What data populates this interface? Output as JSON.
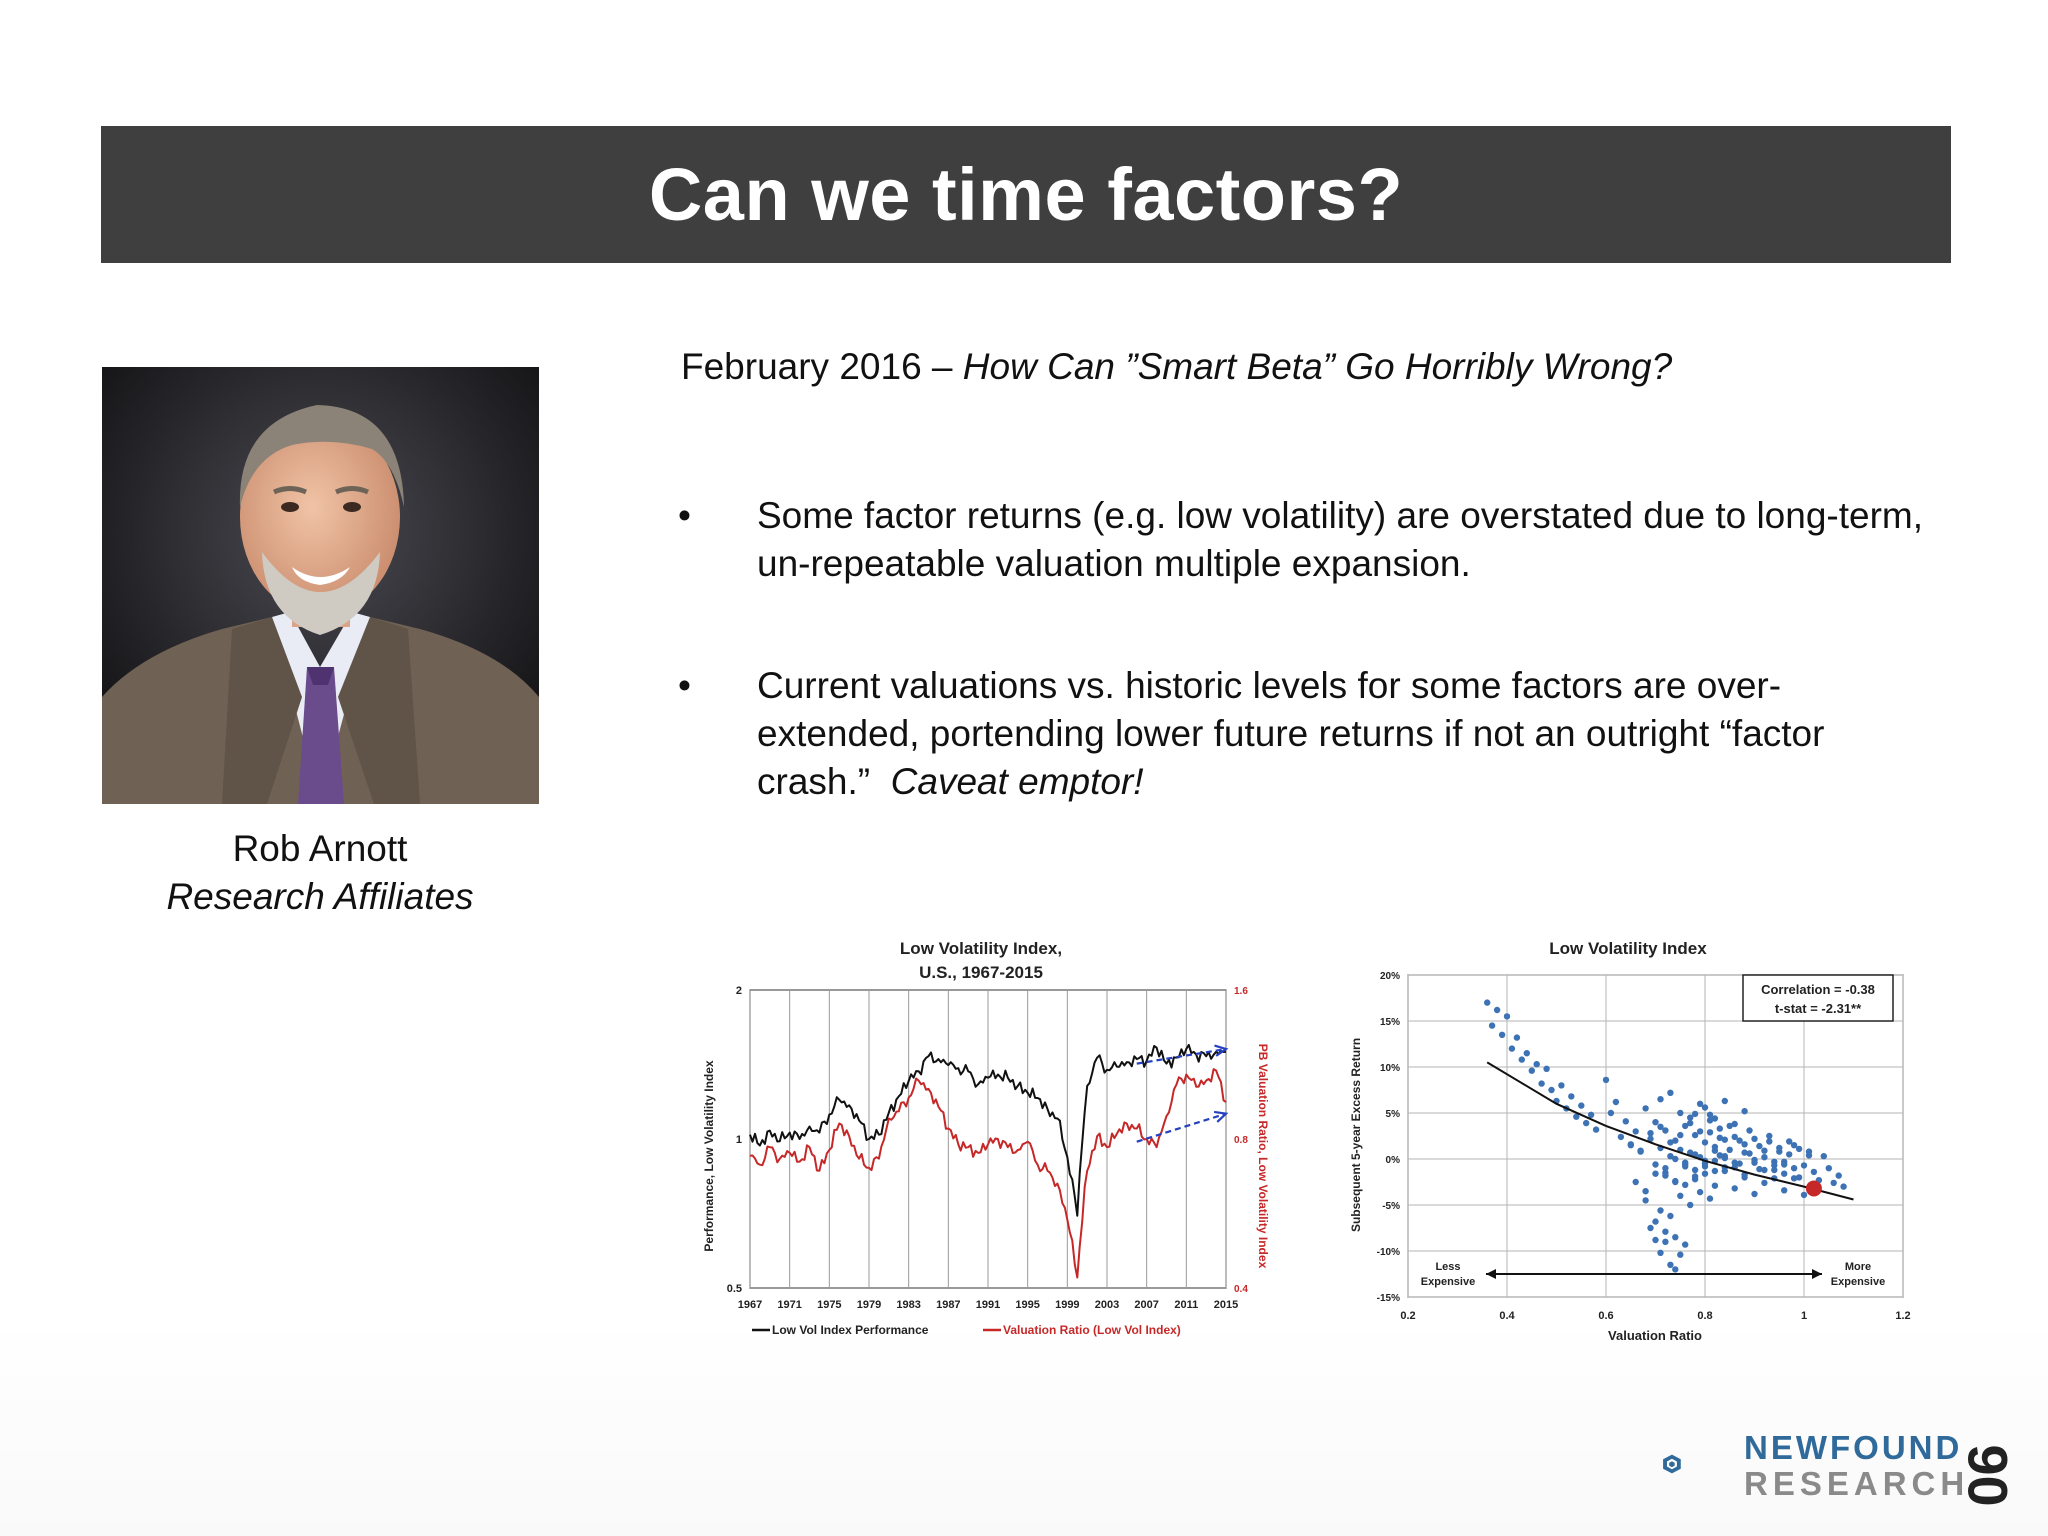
{
  "slide": {
    "title": "Can we time factors?",
    "subtitle_date": "February 2016 – ",
    "subtitle_title": "How Can ”Smart Beta” Go Horribly Wrong?",
    "bullets": [
      {
        "marker": "•",
        "text": "Some factor returns (e.g. low volatility) are overstated due to long-term, un-repeatable valuation multiple expansion."
      },
      {
        "marker": "•",
        "text": "Current valuations vs. historic levels for some factors are over-extended, portending lower future returns if not an outright “factor crash.”",
        "emphasis": "Caveat emptor!"
      }
    ],
    "person": {
      "name": "Rob Arnott",
      "organization": "Research Affiliates"
    },
    "page_number": "90"
  },
  "logo": {
    "word1": "NEWFOUND",
    "word2": "RESEARCH",
    "primary_color": "#2f6a9a",
    "secondary_color": "#8a8a8a"
  },
  "colors": {
    "title_bar": "#3f3f3f",
    "perf_line": "#111111",
    "valuation_line": "#c62828",
    "scatter_point": "#3d72b4",
    "trend_arrow": "#2540c0"
  },
  "chart_data": [
    {
      "type": "line",
      "title_line1": "Low Volatility Index,",
      "title_line2": "U.S., 1967-2015",
      "ylabel": "Performance, Low Volatility Index",
      "y2label": "PB Valuation Ratio, Low Volatility Index",
      "y_scale": "log",
      "ylim": [
        0.5,
        2
      ],
      "y_ticks": [
        "2",
        "1",
        "0.5"
      ],
      "y2lim": [
        0.4,
        1.6
      ],
      "y2_ticks": [
        "1.6",
        "0.8",
        "0.4"
      ],
      "x_ticks": [
        "1967",
        "1971",
        "1975",
        "1979",
        "1983",
        "1987",
        "1991",
        "1995",
        "1999",
        "2003",
        "2007",
        "2011",
        "2015"
      ],
      "grid": "vertical",
      "legend_position": "bottom",
      "series": [
        {
          "name": "Low Vol Index Performance",
          "axis": "left",
          "color": "#111111",
          "x": [
            1967,
            1968,
            1969,
            1970,
            1971,
            1972,
            1973,
            1974,
            1975,
            1976,
            1977,
            1978,
            1979,
            1980,
            1981,
            1982,
            1983,
            1984,
            1985,
            1986,
            1987,
            1988,
            1989,
            1990,
            1991,
            1992,
            1993,
            1994,
            1995,
            1996,
            1997,
            1998,
            1999,
            2000,
            2001,
            2002,
            2003,
            2004,
            2005,
            2006,
            2007,
            2008,
            2009,
            2010,
            2011,
            2012,
            2013,
            2014,
            2015
          ],
          "y": [
            1.02,
            0.97,
            1.04,
            0.99,
            1.03,
            1.0,
            1.06,
            1.03,
            1.12,
            1.2,
            1.17,
            1.09,
            1.0,
            1.02,
            1.13,
            1.22,
            1.31,
            1.37,
            1.47,
            1.45,
            1.41,
            1.39,
            1.37,
            1.29,
            1.33,
            1.35,
            1.33,
            1.28,
            1.24,
            1.21,
            1.15,
            1.1,
            0.92,
            0.7,
            1.28,
            1.46,
            1.38,
            1.4,
            1.43,
            1.45,
            1.44,
            1.53,
            1.42,
            1.46,
            1.52,
            1.48,
            1.47,
            1.5,
            1.5
          ]
        },
        {
          "name": "Valuation Ratio (Low Vol Index)",
          "axis": "right",
          "color": "#c62828",
          "x": [
            1967,
            1968,
            1969,
            1970,
            1971,
            1972,
            1973,
            1974,
            1975,
            1976,
            1977,
            1978,
            1979,
            1980,
            1981,
            1982,
            1983,
            1984,
            1985,
            1986,
            1987,
            1988,
            1989,
            1990,
            1991,
            1992,
            1993,
            1994,
            1995,
            1996,
            1997,
            1998,
            1999,
            2000,
            2001,
            2002,
            2003,
            2004,
            2005,
            2006,
            2007,
            2008,
            2009,
            2010,
            2011,
            2012,
            2013,
            2014,
            2015
          ],
          "y": [
            0.74,
            0.71,
            0.77,
            0.73,
            0.75,
            0.72,
            0.77,
            0.69,
            0.76,
            0.86,
            0.81,
            0.73,
            0.7,
            0.73,
            0.88,
            0.91,
            0.97,
            1.05,
            1.01,
            0.93,
            0.84,
            0.78,
            0.77,
            0.75,
            0.78,
            0.8,
            0.77,
            0.76,
            0.79,
            0.71,
            0.69,
            0.65,
            0.55,
            0.42,
            0.69,
            0.81,
            0.77,
            0.82,
            0.86,
            0.84,
            0.8,
            0.77,
            0.89,
            1.03,
            1.08,
            1.02,
            1.05,
            1.1,
            0.95
          ]
        }
      ],
      "trend_arrows": [
        {
          "from": [
            2006,
            1.42
          ],
          "to": [
            2015,
            1.52
          ],
          "axis": "left"
        },
        {
          "from": [
            2006,
            0.79
          ],
          "to": [
            2015,
            0.9
          ],
          "axis": "right"
        }
      ]
    },
    {
      "type": "scatter",
      "title": "Low Volatility Index",
      "xlabel": "Valuation Ratio",
      "ylabel": "Subsequent 5-year Excess Return",
      "xlim": [
        0.2,
        1.2
      ],
      "x_ticks": [
        "0.2",
        "0.4",
        "0.6",
        "0.8",
        "1",
        "1.2"
      ],
      "ylim": [
        -15,
        20
      ],
      "y_ticks": [
        "20%",
        "15%",
        "10%",
        "5%",
        "0%",
        "-5%",
        "-10%",
        "-15%"
      ],
      "grid": "both",
      "annotation_line1": "Correlation =  -0.38",
      "annotation_line2": "t-stat = -2.31**",
      "axis_note_left_line1": "Less",
      "axis_note_left_line2": "Expensive",
      "axis_note_right_line1": "More",
      "axis_note_right_line2": "Expensive",
      "highlight_point": {
        "x": 1.02,
        "y": -3.2,
        "color": "#c62828"
      },
      "fit_curve": {
        "x": [
          0.36,
          0.5,
          0.6,
          0.7,
          0.8,
          0.9,
          1.0,
          1.1
        ],
        "y": [
          10.5,
          6.0,
          3.6,
          1.6,
          -0.2,
          -1.7,
          -3.0,
          -4.4
        ]
      },
      "points": {
        "x": [
          0.36,
          0.37,
          0.38,
          0.39,
          0.4,
          0.41,
          0.42,
          0.43,
          0.44,
          0.45,
          0.46,
          0.47,
          0.48,
          0.49,
          0.5,
          0.51,
          0.52,
          0.53,
          0.54,
          0.55,
          0.56,
          0.57,
          0.58,
          0.6,
          0.61,
          0.62,
          0.63,
          0.64,
          0.65,
          0.66,
          0.67,
          0.68,
          0.69,
          0.7,
          0.7,
          0.71,
          0.71,
          0.72,
          0.72,
          0.73,
          0.73,
          0.74,
          0.74,
          0.75,
          0.75,
          0.76,
          0.76,
          0.77,
          0.77,
          0.78,
          0.78,
          0.79,
          0.79,
          0.8,
          0.8,
          0.81,
          0.81,
          0.82,
          0.82,
          0.83,
          0.83,
          0.84,
          0.84,
          0.85,
          0.86,
          0.87,
          0.88,
          0.89,
          0.9,
          0.91,
          0.92,
          0.93,
          0.94,
          0.95,
          0.96,
          0.97,
          0.98,
          0.99,
          1.0,
          1.01,
          1.02,
          1.03,
          1.04,
          1.05,
          1.06,
          1.07,
          1.08,
          0.69,
          0.7,
          0.71,
          0.72,
          0.73,
          0.74,
          0.75,
          0.76,
          0.7,
          0.72,
          0.74,
          0.68,
          0.71,
          0.73,
          0.75,
          0.77,
          0.79,
          0.81,
          0.66,
          0.68,
          0.72,
          0.76,
          0.78,
          0.8,
          0.82,
          0.84,
          0.86,
          0.88,
          0.9,
          0.92,
          0.94,
          0.96,
          0.98,
          1.0,
          0.65,
          0.67,
          0.69,
          0.71,
          0.73,
          0.75,
          0.77,
          0.79,
          0.81,
          0.83,
          0.85,
          0.87,
          0.89,
          0.91,
          0.93,
          0.95,
          0.97,
          0.99,
          1.01,
          0.74,
          0.76,
          0.78,
          0.8,
          0.82,
          0.84,
          0.86,
          0.88,
          0.9,
          0.92,
          0.94,
          0.96,
          0.98,
          0.78,
          0.8,
          0.82,
          0.84,
          0.86,
          0.88,
          0.7,
          0.72,
          0.74,
          0.76,
          0.78,
          0.8,
          0.82,
          0.84,
          0.86,
          0.88,
          0.9,
          0.92,
          0.94,
          0.96
        ],
        "y": [
          17.0,
          14.5,
          16.2,
          13.5,
          15.5,
          12.0,
          13.2,
          10.8,
          11.5,
          9.6,
          10.3,
          8.2,
          9.8,
          7.5,
          6.3,
          8.0,
          5.5,
          6.8,
          4.6,
          5.8,
          3.9,
          4.8,
          3.2,
          8.6,
          5.0,
          6.2,
          2.4,
          4.1,
          1.5,
          3.0,
          0.8,
          5.5,
          2.2,
          -0.6,
          4.0,
          1.2,
          6.5,
          -1.8,
          3.1,
          0.3,
          7.2,
          -2.5,
          2.0,
          1.0,
          5.0,
          -0.4,
          3.6,
          0.7,
          4.5,
          -1.2,
          2.6,
          0.2,
          6.0,
          -0.8,
          1.8,
          2.9,
          4.8,
          -0.2,
          1.3,
          3.3,
          0.4,
          2.1,
          -0.9,
          1.0,
          2.4,
          -0.5,
          1.6,
          0.6,
          2.2,
          -1.1,
          0.9,
          1.9,
          -0.3,
          1.2,
          -1.6,
          0.5,
          1.5,
          -2.0,
          -0.7,
          0.8,
          -1.4,
          -2.3,
          0.3,
          -1.0,
          -2.6,
          -1.8,
          -3.0,
          -7.5,
          -8.8,
          -10.2,
          -9.0,
          -11.5,
          -12.0,
          -10.4,
          -9.3,
          -6.8,
          -7.9,
          -8.5,
          -4.5,
          -5.6,
          -6.2,
          -4.0,
          -5.0,
          -3.6,
          -4.3,
          -2.5,
          -3.5,
          -1.5,
          -2.8,
          -2.2,
          -1.6,
          -2.9,
          -1.3,
          -3.2,
          -2.0,
          -3.8,
          -2.6,
          -1.2,
          -3.4,
          -2.1,
          -3.9,
          1.6,
          0.9,
          2.8,
          3.5,
          1.8,
          2.6,
          3.9,
          3.0,
          4.2,
          2.3,
          3.6,
          2.0,
          3.1,
          1.4,
          2.5,
          0.8,
          1.9,
          1.1,
          0.4,
          0.0,
          -0.6,
          0.5,
          -0.2,
          0.9,
          0.3,
          -0.4,
          0.7,
          -0.1,
          0.2,
          -0.7,
          -0.3,
          -1.0,
          4.9,
          5.6,
          4.4,
          6.3,
          3.8,
          5.2,
          -1.6,
          -1.0,
          -2.4,
          -0.8,
          -1.9,
          -0.5,
          -1.3,
          0.1,
          -0.9,
          -1.7,
          -0.4,
          -1.2,
          -2.1,
          -0.6
        ]
      }
    }
  ]
}
